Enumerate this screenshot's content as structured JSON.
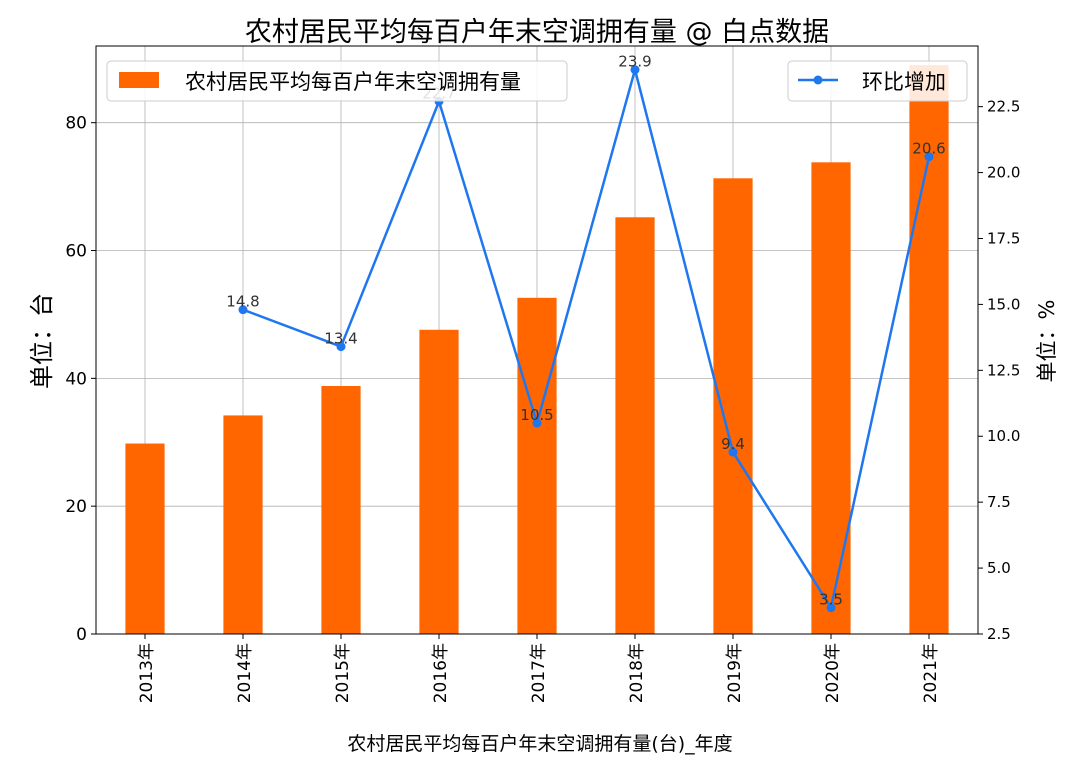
{
  "chart_data": {
    "type": "bar+line",
    "title": "农村居民平均每百户年末空调拥有量 @ 白点数据",
    "xlabel": "农村居民平均每百户年末空调拥有量(台)_年度",
    "ylabel_left": "单位：台",
    "ylabel_right": "单位：%",
    "categories": [
      "2013年",
      "2014年",
      "2015年",
      "2016年",
      "2017年",
      "2018年",
      "2019年",
      "2020年",
      "2021年"
    ],
    "bar_series": {
      "name": "农村居民平均每百户年末空调拥有量",
      "color": "#ff6600",
      "values": [
        29.8,
        34.2,
        38.8,
        47.6,
        52.6,
        65.2,
        71.3,
        73.8,
        89.0
      ]
    },
    "line_series": {
      "name": "环比增加",
      "color": "#1f77f0",
      "x_start_index": 1,
      "values": [
        14.8,
        13.4,
        22.7,
        10.5,
        23.9,
        9.4,
        3.5,
        20.6
      ],
      "labels": [
        "14.8",
        "13.4",
        "22.7",
        "10.5",
        "23.9",
        "9.4",
        "3.5",
        "20.6"
      ]
    },
    "y_left": {
      "range": [
        0,
        92
      ],
      "ticks": [
        0,
        20,
        40,
        60,
        80
      ],
      "tick_labels": [
        "0",
        "20",
        "40",
        "60",
        "80"
      ]
    },
    "y_right": {
      "range": [
        2.5,
        24.8
      ],
      "ticks": [
        2.5,
        5.0,
        7.5,
        10.0,
        12.5,
        15.0,
        17.5,
        20.0,
        22.5
      ],
      "tick_labels": [
        "2.5",
        "5.0",
        "7.5",
        "10.0",
        "12.5",
        "15.0",
        "17.5",
        "20.0",
        "22.5"
      ]
    },
    "grid": true,
    "legend_bar_position": "top-left",
    "legend_line_position": "top-right"
  }
}
